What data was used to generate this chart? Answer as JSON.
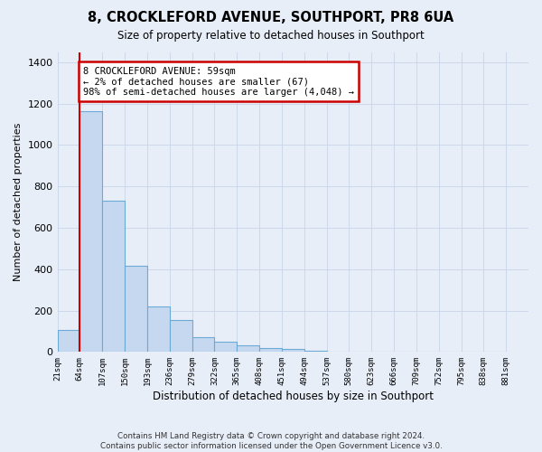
{
  "title": "8, CROCKLEFORD AVENUE, SOUTHPORT, PR8 6UA",
  "subtitle": "Size of property relative to detached houses in Southport",
  "xlabel": "Distribution of detached houses by size in Southport",
  "ylabel": "Number of detached properties",
  "footer_line1": "Contains HM Land Registry data © Crown copyright and database right 2024.",
  "footer_line2": "Contains public sector information licensed under the Open Government Licence v3.0.",
  "cat_labels": [
    "21sqm",
    "64sqm",
    "107sqm",
    "150sqm",
    "193sqm",
    "236sqm",
    "279sqm",
    "322sqm",
    "365sqm",
    "408sqm",
    "451sqm",
    "494sqm",
    "537sqm",
    "580sqm",
    "623sqm",
    "666sqm",
    "709sqm",
    "752sqm",
    "795sqm",
    "838sqm",
    "881sqm"
  ],
  "bar_heights": [
    107,
    1163,
    730,
    418,
    218,
    153,
    72,
    48,
    32,
    20,
    15,
    5,
    0,
    0,
    0,
    0,
    0,
    0,
    0,
    0
  ],
  "bar_color": "#c5d8f0",
  "bar_edge_color": "#6aaad4",
  "vline_color": "#cc0000",
  "vline_bar_index": 0,
  "ann_line1": "8 CROCKLEFORD AVENUE: 59sqm",
  "ann_line2": "← 2% of detached houses are smaller (67)",
  "ann_line3": "98% of semi-detached houses are larger (4,048) →",
  "ann_box_color": "#cc0000",
  "ylim": [
    0,
    1450
  ],
  "yticks": [
    0,
    200,
    400,
    600,
    800,
    1000,
    1200,
    1400
  ],
  "bg_color": "#e8eef8",
  "grid_color": "#c8d4e8"
}
